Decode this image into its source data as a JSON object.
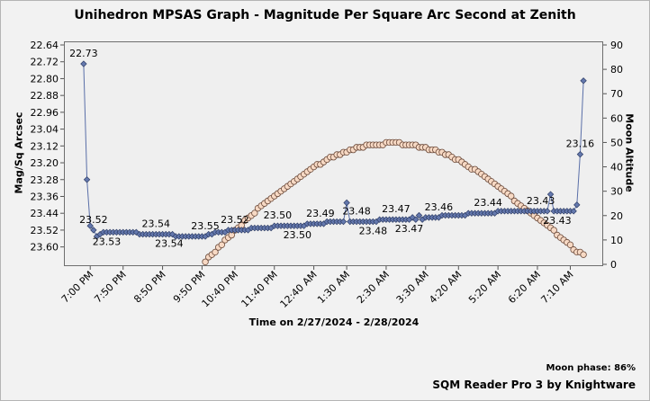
{
  "chart_data": {
    "type": "line",
    "title": "Unihedron MPSAS Graph - Magnitude Per Square Arc Second at Zenith",
    "xlabel": "Time on 2/27/2024 - 2/28/2024",
    "ylabel": "Mag/Sq Arcsec",
    "ylabel_right": "Moon Altitude",
    "y_ticks": [
      "22.64",
      "22.72",
      "22.80",
      "22.88",
      "22.96",
      "23.04",
      "23.12",
      "23.20",
      "23.28",
      "23.36",
      "23.44",
      "23.52",
      "23.60"
    ],
    "y2_ticks": [
      "90",
      "80",
      "70",
      "60",
      "50",
      "40",
      "30",
      "20",
      "10",
      "0"
    ],
    "ylim": [
      23.64,
      22.64
    ],
    "y2lim": [
      0,
      90
    ],
    "x_ticks": [
      "7:00 PM",
      "7:50 PM",
      "8:50 PM",
      "9:50 PM",
      "10:40 PM",
      "11:40 PM",
      "12:40 AM",
      "1:30 AM",
      "2:30 AM",
      "3:30 AM",
      "4:20 AM",
      "5:20 AM",
      "6:20 AM",
      "7:10 AM"
    ],
    "x_tick_minutes": [
      60,
      110,
      170,
      230,
      280,
      340,
      400,
      450,
      510,
      570,
      620,
      680,
      740,
      790
    ],
    "xlim": [
      20,
      840
    ],
    "series": [
      {
        "name": "MPSAS",
        "color": "#5a6fa8",
        "marker_fill": "#6478ad",
        "points": [
          [
            50,
            22.73
          ],
          [
            55,
            23.28
          ],
          [
            60,
            23.5
          ],
          [
            65,
            23.52
          ],
          [
            70,
            23.55
          ],
          [
            75,
            23.54
          ],
          [
            80,
            23.53
          ],
          [
            85,
            23.53
          ],
          [
            90,
            23.53
          ],
          [
            95,
            23.53
          ],
          [
            100,
            23.53
          ],
          [
            105,
            23.53
          ],
          [
            110,
            23.53
          ],
          [
            115,
            23.53
          ],
          [
            120,
            23.53
          ],
          [
            125,
            23.53
          ],
          [
            130,
            23.53
          ],
          [
            135,
            23.54
          ],
          [
            140,
            23.54
          ],
          [
            145,
            23.54
          ],
          [
            150,
            23.54
          ],
          [
            155,
            23.54
          ],
          [
            160,
            23.54
          ],
          [
            165,
            23.54
          ],
          [
            170,
            23.54
          ],
          [
            175,
            23.54
          ],
          [
            180,
            23.54
          ],
          [
            185,
            23.54
          ],
          [
            190,
            23.55
          ],
          [
            195,
            23.55
          ],
          [
            200,
            23.55
          ],
          [
            205,
            23.55
          ],
          [
            210,
            23.55
          ],
          [
            215,
            23.55
          ],
          [
            220,
            23.55
          ],
          [
            225,
            23.55
          ],
          [
            230,
            23.55
          ],
          [
            235,
            23.55
          ],
          [
            240,
            23.54
          ],
          [
            245,
            23.54
          ],
          [
            250,
            23.53
          ],
          [
            255,
            23.53
          ],
          [
            260,
            23.53
          ],
          [
            265,
            23.53
          ],
          [
            270,
            23.52
          ],
          [
            275,
            23.52
          ],
          [
            280,
            23.52
          ],
          [
            285,
            23.52
          ],
          [
            290,
            23.52
          ],
          [
            295,
            23.52
          ],
          [
            300,
            23.52
          ],
          [
            305,
            23.51
          ],
          [
            310,
            23.51
          ],
          [
            315,
            23.51
          ],
          [
            320,
            23.51
          ],
          [
            325,
            23.51
          ],
          [
            330,
            23.51
          ],
          [
            335,
            23.51
          ],
          [
            340,
            23.5
          ],
          [
            345,
            23.5
          ],
          [
            350,
            23.5
          ],
          [
            355,
            23.5
          ],
          [
            360,
            23.5
          ],
          [
            365,
            23.5
          ],
          [
            370,
            23.5
          ],
          [
            375,
            23.5
          ],
          [
            380,
            23.5
          ],
          [
            385,
            23.5
          ],
          [
            390,
            23.49
          ],
          [
            395,
            23.49
          ],
          [
            400,
            23.49
          ],
          [
            405,
            23.49
          ],
          [
            410,
            23.49
          ],
          [
            415,
            23.49
          ],
          [
            420,
            23.48
          ],
          [
            425,
            23.48
          ],
          [
            430,
            23.48
          ],
          [
            435,
            23.48
          ],
          [
            440,
            23.48
          ],
          [
            445,
            23.48
          ],
          [
            450,
            23.39
          ],
          [
            455,
            23.48
          ],
          [
            460,
            23.48
          ],
          [
            465,
            23.48
          ],
          [
            470,
            23.48
          ],
          [
            475,
            23.48
          ],
          [
            480,
            23.48
          ],
          [
            485,
            23.48
          ],
          [
            490,
            23.48
          ],
          [
            495,
            23.48
          ],
          [
            500,
            23.47
          ],
          [
            505,
            23.47
          ],
          [
            510,
            23.47
          ],
          [
            515,
            23.47
          ],
          [
            520,
            23.47
          ],
          [
            525,
            23.47
          ],
          [
            530,
            23.47
          ],
          [
            535,
            23.47
          ],
          [
            540,
            23.47
          ],
          [
            545,
            23.47
          ],
          [
            550,
            23.46
          ],
          [
            555,
            23.47
          ],
          [
            560,
            23.45
          ],
          [
            565,
            23.47
          ],
          [
            570,
            23.46
          ],
          [
            575,
            23.46
          ],
          [
            580,
            23.46
          ],
          [
            585,
            23.46
          ],
          [
            590,
            23.46
          ],
          [
            595,
            23.45
          ],
          [
            600,
            23.45
          ],
          [
            605,
            23.45
          ],
          [
            610,
            23.45
          ],
          [
            615,
            23.45
          ],
          [
            620,
            23.45
          ],
          [
            625,
            23.45
          ],
          [
            630,
            23.45
          ],
          [
            635,
            23.44
          ],
          [
            640,
            23.44
          ],
          [
            645,
            23.44
          ],
          [
            650,
            23.44
          ],
          [
            655,
            23.44
          ],
          [
            660,
            23.44
          ],
          [
            665,
            23.44
          ],
          [
            670,
            23.44
          ],
          [
            675,
            23.44
          ],
          [
            680,
            23.43
          ],
          [
            685,
            23.43
          ],
          [
            690,
            23.43
          ],
          [
            695,
            23.43
          ],
          [
            700,
            23.43
          ],
          [
            705,
            23.43
          ],
          [
            710,
            23.43
          ],
          [
            715,
            23.43
          ],
          [
            720,
            23.43
          ],
          [
            725,
            23.43
          ],
          [
            730,
            23.43
          ],
          [
            735,
            23.43
          ],
          [
            740,
            23.43
          ],
          [
            745,
            23.43
          ],
          [
            750,
            23.43
          ],
          [
            755,
            23.43
          ],
          [
            760,
            23.35
          ],
          [
            765,
            23.43
          ],
          [
            770,
            23.43
          ],
          [
            775,
            23.43
          ],
          [
            780,
            23.43
          ],
          [
            785,
            23.43
          ],
          [
            790,
            23.43
          ],
          [
            795,
            23.43
          ],
          [
            800,
            23.4
          ],
          [
            805,
            23.16
          ],
          [
            810,
            22.81
          ]
        ],
        "labels": [
          {
            "x": 50,
            "text": "22.73",
            "pos": "above"
          },
          {
            "x": 65,
            "text": "23.52",
            "pos": "above"
          },
          {
            "x": 85,
            "text": "23.53",
            "pos": "below"
          },
          {
            "x": 160,
            "text": "23.54",
            "pos": "above"
          },
          {
            "x": 180,
            "text": "23.54",
            "pos": "below"
          },
          {
            "x": 235,
            "text": "23.55",
            "pos": "above"
          },
          {
            "x": 280,
            "text": "23.52",
            "pos": "above"
          },
          {
            "x": 345,
            "text": "23.50",
            "pos": "above"
          },
          {
            "x": 375,
            "text": "23.50",
            "pos": "below"
          },
          {
            "x": 410,
            "text": "23.49",
            "pos": "above"
          },
          {
            "x": 465,
            "text": "23.48",
            "pos": "above"
          },
          {
            "x": 490,
            "text": "23.48",
            "pos": "below"
          },
          {
            "x": 525,
            "text": "23.47",
            "pos": "above"
          },
          {
            "x": 545,
            "text": "23.47",
            "pos": "below"
          },
          {
            "x": 590,
            "text": "23.46",
            "pos": "above"
          },
          {
            "x": 665,
            "text": "23.44",
            "pos": "above"
          },
          {
            "x": 745,
            "text": "23.43",
            "pos": "above"
          },
          {
            "x": 770,
            "text": "23.43",
            "pos": "below"
          },
          {
            "x": 805,
            "text": "23.16",
            "pos": "above"
          }
        ]
      },
      {
        "name": "Moon Altitude",
        "axis": "right",
        "marker_fill": "#f7d9c4",
        "points": [
          [
            235,
            1
          ],
          [
            240,
            3
          ],
          [
            245,
            4
          ],
          [
            250,
            5
          ],
          [
            255,
            7
          ],
          [
            260,
            8
          ],
          [
            265,
            10
          ],
          [
            270,
            11
          ],
          [
            275,
            12
          ],
          [
            280,
            14
          ],
          [
            285,
            15
          ],
          [
            290,
            16
          ],
          [
            295,
            18
          ],
          [
            300,
            19
          ],
          [
            305,
            20
          ],
          [
            310,
            21
          ],
          [
            315,
            23
          ],
          [
            320,
            24
          ],
          [
            325,
            25
          ],
          [
            330,
            26
          ],
          [
            335,
            27
          ],
          [
            340,
            28
          ],
          [
            345,
            29
          ],
          [
            350,
            30
          ],
          [
            355,
            31
          ],
          [
            360,
            32
          ],
          [
            365,
            33
          ],
          [
            370,
            34
          ],
          [
            375,
            35
          ],
          [
            380,
            36
          ],
          [
            385,
            37
          ],
          [
            390,
            38
          ],
          [
            395,
            39
          ],
          [
            400,
            40
          ],
          [
            405,
            41
          ],
          [
            410,
            41
          ],
          [
            415,
            42
          ],
          [
            420,
            43
          ],
          [
            425,
            44
          ],
          [
            430,
            44
          ],
          [
            435,
            45
          ],
          [
            440,
            45
          ],
          [
            445,
            46
          ],
          [
            450,
            46
          ],
          [
            455,
            47
          ],
          [
            460,
            47
          ],
          [
            465,
            48
          ],
          [
            470,
            48
          ],
          [
            475,
            48
          ],
          [
            480,
            49
          ],
          [
            485,
            49
          ],
          [
            490,
            49
          ],
          [
            495,
            49
          ],
          [
            500,
            49
          ],
          [
            505,
            49
          ],
          [
            510,
            50
          ],
          [
            515,
            50
          ],
          [
            520,
            50
          ],
          [
            525,
            50
          ],
          [
            530,
            50
          ],
          [
            535,
            49
          ],
          [
            540,
            49
          ],
          [
            545,
            49
          ],
          [
            550,
            49
          ],
          [
            555,
            49
          ],
          [
            560,
            48
          ],
          [
            565,
            48
          ],
          [
            570,
            48
          ],
          [
            575,
            47
          ],
          [
            580,
            47
          ],
          [
            585,
            47
          ],
          [
            590,
            46
          ],
          [
            595,
            46
          ],
          [
            600,
            45
          ],
          [
            605,
            45
          ],
          [
            610,
            44
          ],
          [
            615,
            43
          ],
          [
            620,
            43
          ],
          [
            625,
            42
          ],
          [
            630,
            41
          ],
          [
            635,
            40
          ],
          [
            640,
            39
          ],
          [
            645,
            39
          ],
          [
            650,
            38
          ],
          [
            655,
            37
          ],
          [
            660,
            36
          ],
          [
            665,
            35
          ],
          [
            670,
            34
          ],
          [
            675,
            33
          ],
          [
            680,
            32
          ],
          [
            685,
            31
          ],
          [
            690,
            30
          ],
          [
            695,
            29
          ],
          [
            700,
            28
          ],
          [
            705,
            26
          ],
          [
            710,
            25
          ],
          [
            715,
            24
          ],
          [
            720,
            23
          ],
          [
            725,
            22
          ],
          [
            730,
            21
          ],
          [
            735,
            20
          ],
          [
            740,
            19
          ],
          [
            745,
            18
          ],
          [
            750,
            17
          ],
          [
            755,
            16
          ],
          [
            760,
            15
          ],
          [
            765,
            14
          ],
          [
            770,
            12
          ],
          [
            775,
            11
          ],
          [
            780,
            10
          ],
          [
            785,
            9
          ],
          [
            790,
            8
          ],
          [
            795,
            6
          ],
          [
            800,
            5
          ],
          [
            805,
            5
          ],
          [
            810,
            4
          ]
        ]
      }
    ],
    "moon_phase": "Moon phase: 86%",
    "credit": "SQM Reader Pro 3 by Knightware"
  }
}
